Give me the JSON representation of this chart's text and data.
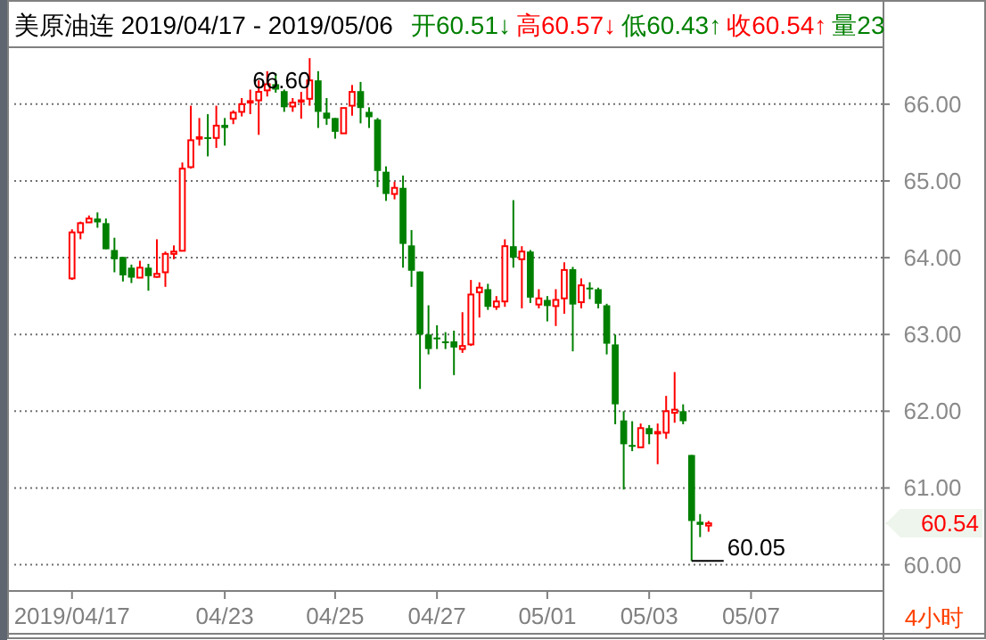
{
  "chart_data": {
    "type": "candlestick",
    "title": "美原油连  2019/04/17 - 2019/05/06",
    "annotations": [
      "开60.51↓",
      "高60.57↓",
      "低60.43↑",
      "收60.54↑",
      "量23",
      "4小时",
      "66.60",
      "60.05"
    ],
    "categories": [
      "2019/04/17",
      null,
      null,
      null,
      null,
      null,
      null,
      null,
      null,
      null,
      null,
      null,
      null,
      null,
      null,
      null,
      null,
      null,
      "04/23",
      null,
      null,
      null,
      null,
      null,
      null,
      null,
      null,
      null,
      null,
      null,
      null,
      "04/25",
      null,
      null,
      null,
      null,
      null,
      null,
      null,
      null,
      null,
      null,
      null,
      "04/27",
      null,
      null,
      null,
      null,
      null,
      null,
      null,
      null,
      null,
      null,
      null,
      null,
      "05/01",
      null,
      null,
      null,
      null,
      null,
      null,
      null,
      null,
      null,
      null,
      null,
      "05/03",
      null,
      null,
      null,
      null,
      null,
      null,
      null,
      null,
      null,
      null,
      null,
      "05/07",
      null,
      null,
      null,
      null,
      null,
      null,
      null,
      null,
      null,
      null,
      null,
      null,
      null,
      null,
      null
    ],
    "ohlc": [
      [
        63.73,
        64.37,
        63.71,
        64.33
      ],
      [
        64.33,
        64.47,
        64.24,
        64.45
      ],
      [
        64.46,
        64.55,
        64.46,
        64.51
      ],
      [
        64.51,
        64.59,
        64.39,
        64.46
      ],
      [
        64.45,
        64.51,
        64.11,
        64.11
      ],
      [
        64.1,
        64.26,
        63.81,
        63.98
      ],
      [
        64.01,
        64.01,
        63.69,
        63.77
      ],
      [
        63.87,
        63.91,
        63.67,
        63.74
      ],
      [
        63.74,
        63.96,
        63.74,
        63.87
      ],
      [
        63.87,
        63.92,
        63.57,
        63.76
      ],
      [
        63.75,
        64.24,
        63.74,
        63.79
      ],
      [
        63.81,
        64.08,
        63.62,
        64.05
      ],
      [
        64.05,
        64.16,
        63.98,
        64.08
      ],
      [
        64.09,
        65.24,
        64.09,
        65.16
      ],
      [
        65.18,
        65.98,
        65.16,
        65.53
      ],
      [
        65.55,
        65.82,
        65.46,
        65.57
      ],
      [
        65.57,
        65.87,
        65.32,
        65.55
      ],
      [
        65.56,
        65.98,
        65.43,
        65.72
      ],
      [
        65.73,
        65.82,
        65.46,
        65.69
      ],
      [
        65.81,
        65.92,
        65.74,
        65.89
      ],
      [
        65.9,
        66.08,
        65.84,
        66.0
      ],
      [
        66.02,
        66.19,
        65.87,
        66.04
      ],
      [
        66.05,
        66.31,
        65.6,
        66.16
      ],
      [
        66.18,
        66.43,
        66.1,
        66.26
      ],
      [
        66.26,
        66.4,
        66.15,
        66.19
      ],
      [
        66.17,
        66.19,
        65.9,
        65.96
      ],
      [
        65.97,
        66.08,
        65.9,
        66.02
      ],
      [
        66.04,
        66.16,
        65.81,
        66.05
      ],
      [
        66.07,
        66.6,
        65.98,
        66.31
      ],
      [
        66.31,
        66.43,
        65.69,
        65.9
      ],
      [
        65.89,
        66.08,
        65.73,
        65.81
      ],
      [
        65.82,
        65.82,
        65.55,
        65.64
      ],
      [
        65.62,
        65.95,
        65.62,
        65.95
      ],
      [
        65.98,
        66.25,
        65.85,
        66.16
      ],
      [
        66.17,
        66.29,
        65.75,
        65.95
      ],
      [
        65.9,
        65.96,
        65.69,
        65.83
      ],
      [
        65.8,
        65.82,
        64.92,
        65.13
      ],
      [
        65.12,
        65.19,
        64.74,
        64.83
      ],
      [
        64.83,
        64.99,
        64.76,
        64.91
      ],
      [
        64.91,
        65.07,
        63.87,
        64.18
      ],
      [
        64.16,
        64.36,
        63.62,
        63.83
      ],
      [
        63.82,
        63.82,
        62.29,
        63.0
      ],
      [
        63.0,
        63.38,
        62.74,
        62.81
      ],
      [
        62.96,
        63.12,
        62.81,
        62.94
      ],
      [
        62.91,
        63.03,
        62.81,
        62.89
      ],
      [
        62.91,
        63.05,
        62.47,
        62.83
      ],
      [
        62.81,
        63.29,
        62.76,
        62.85
      ],
      [
        62.87,
        63.71,
        62.85,
        63.52
      ],
      [
        63.55,
        63.68,
        63.22,
        63.61
      ],
      [
        63.59,
        63.66,
        63.32,
        63.36
      ],
      [
        63.36,
        63.5,
        63.32,
        63.43
      ],
      [
        63.43,
        64.24,
        63.36,
        64.15
      ],
      [
        64.15,
        64.75,
        63.87,
        64.0
      ],
      [
        63.98,
        64.15,
        63.34,
        64.08
      ],
      [
        64.08,
        64.1,
        63.41,
        63.48
      ],
      [
        63.39,
        63.59,
        63.34,
        63.47
      ],
      [
        63.45,
        63.5,
        63.17,
        63.37
      ],
      [
        63.37,
        63.59,
        63.11,
        63.45
      ],
      [
        63.47,
        63.94,
        63.27,
        63.84
      ],
      [
        63.85,
        63.88,
        62.78,
        63.39
      ],
      [
        63.42,
        63.73,
        63.34,
        63.64
      ],
      [
        63.61,
        63.68,
        63.46,
        63.59
      ],
      [
        63.59,
        63.61,
        63.34,
        63.4
      ],
      [
        63.38,
        63.4,
        62.74,
        62.88
      ],
      [
        62.87,
        63.0,
        61.83,
        62.09
      ],
      [
        61.88,
        62.0,
        60.98,
        61.57
      ],
      [
        61.56,
        61.87,
        61.48,
        61.54
      ],
      [
        61.53,
        61.84,
        61.53,
        61.78
      ],
      [
        61.78,
        61.82,
        61.57,
        61.7
      ],
      [
        61.71,
        61.84,
        61.31,
        61.73
      ],
      [
        61.72,
        62.2,
        61.64,
        62.0
      ],
      [
        61.98,
        62.51,
        61.85,
        62.02
      ],
      [
        62.0,
        62.09,
        61.83,
        61.87
      ],
      [
        61.43,
        61.43,
        60.05,
        60.57
      ],
      [
        60.56,
        60.66,
        60.36,
        60.52
      ],
      [
        60.51,
        60.57,
        60.43,
        60.54
      ],
      null,
      null,
      null,
      null,
      null,
      null,
      null,
      null,
      null,
      null,
      null,
      null,
      null,
      null,
      null,
      null,
      null,
      null,
      null,
      null
    ],
    "ylim": [
      59.67,
      66.73
    ],
    "yticks": [
      {
        "value": 60,
        "label": "60.00"
      },
      {
        "value": 61,
        "label": "61.00"
      },
      {
        "value": 62,
        "label": "62.00"
      },
      {
        "value": 63,
        "label": "63.00"
      },
      {
        "value": 64,
        "label": "64.00"
      },
      {
        "value": 65,
        "label": "65.00"
      },
      {
        "value": 66,
        "label": "66.00"
      }
    ],
    "grid": "y",
    "ref_lines": [
      {
        "axis": "y",
        "value": 60.54,
        "label": "60.54"
      }
    ]
  }
}
